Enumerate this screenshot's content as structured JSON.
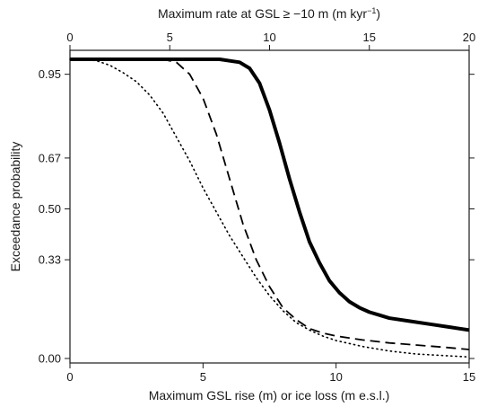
{
  "chart_data": {
    "type": "line",
    "title": "",
    "xlabel": "Maximum GSL rise (m) or ice loss (m e.s.l.)",
    "x2label": {
      "main": "Maximum rate at GSL ≥ −10 m (m kyr",
      "sup": "−1",
      "close": ")"
    },
    "ylabel": "Exceedance probability",
    "xlim": [
      0,
      15
    ],
    "x2lim": [
      0,
      20
    ],
    "ylim": [
      0,
      1
    ],
    "x_ticks": [
      0,
      5,
      10,
      15
    ],
    "x2_ticks": [
      0,
      5,
      10,
      15,
      20
    ],
    "y_ticks": [
      0.0,
      0.33,
      0.5,
      0.67,
      0.95
    ],
    "y_tick_labels": [
      "0.00",
      "0.33",
      "0.50",
      "0.67",
      "0.95"
    ],
    "grid": false,
    "legend": "none",
    "series": [
      {
        "style": "solid",
        "axis": "top",
        "color": "#000000",
        "x": [
          0,
          2,
          4,
          6,
          7.5,
          8.5,
          9.0,
          9.5,
          10.0,
          10.5,
          11.0,
          11.5,
          12.0,
          12.5,
          13.0,
          13.5,
          14.0,
          14.5,
          15.0,
          15.5,
          16.0,
          17.0,
          18.0,
          19.0,
          20.0
        ],
        "y": [
          1.0,
          1.0,
          1.0,
          1.0,
          1.0,
          0.99,
          0.97,
          0.92,
          0.83,
          0.72,
          0.6,
          0.49,
          0.39,
          0.32,
          0.26,
          0.22,
          0.19,
          0.17,
          0.155,
          0.145,
          0.135,
          0.125,
          0.115,
          0.105,
          0.095
        ]
      },
      {
        "style": "dashed",
        "axis": "bottom",
        "color": "#000000",
        "x": [
          0,
          2,
          3.5,
          4.0,
          4.5,
          5.0,
          5.5,
          6.0,
          6.5,
          7.0,
          7.5,
          8.0,
          8.5,
          9.0,
          9.5,
          10.0,
          11.0,
          12.0,
          13.0,
          14.0,
          15.0
        ],
        "y": [
          1.0,
          1.0,
          1.0,
          0.99,
          0.95,
          0.87,
          0.75,
          0.6,
          0.45,
          0.33,
          0.24,
          0.17,
          0.13,
          0.1,
          0.085,
          0.075,
          0.062,
          0.052,
          0.045,
          0.038,
          0.03
        ]
      },
      {
        "style": "dotted",
        "axis": "bottom",
        "color": "#000000",
        "x": [
          0,
          0.5,
          1.0,
          1.5,
          2.0,
          2.5,
          3.0,
          3.5,
          4.0,
          4.5,
          5.0,
          5.5,
          6.0,
          6.5,
          7.0,
          7.5,
          8.0,
          8.5,
          9.0,
          9.5,
          10.0,
          11.0,
          12.0,
          13.0,
          14.0,
          15.0
        ],
        "y": [
          1.0,
          1.0,
          0.995,
          0.98,
          0.955,
          0.925,
          0.88,
          0.82,
          0.74,
          0.66,
          0.57,
          0.49,
          0.41,
          0.34,
          0.27,
          0.21,
          0.16,
          0.12,
          0.095,
          0.075,
          0.06,
          0.04,
          0.025,
          0.015,
          0.01,
          0.005
        ]
      }
    ]
  }
}
